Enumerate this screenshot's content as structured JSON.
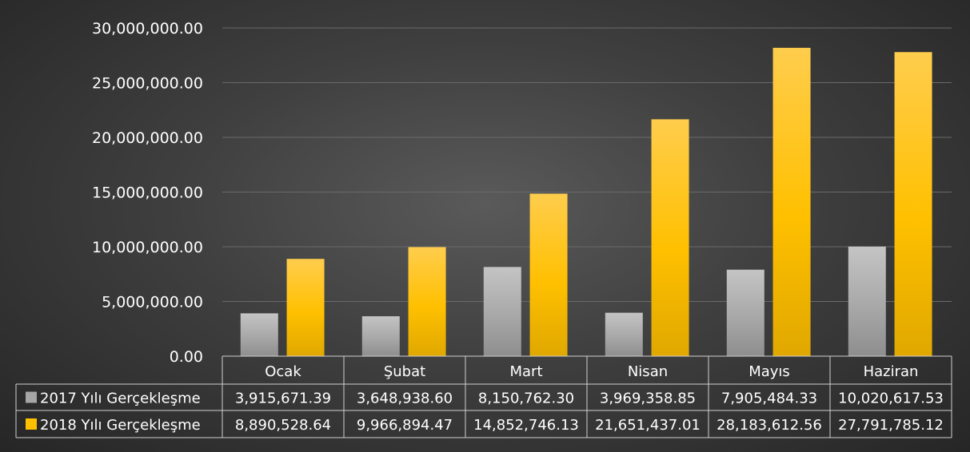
{
  "chart_data": {
    "type": "bar",
    "categories": [
      "Ocak",
      "Şubat",
      "Mart",
      "Nisan",
      "Mayıs",
      "Haziran"
    ],
    "series": [
      {
        "name": "2017 Yılı Gerçekleşme",
        "values": [
          3915671.39,
          3648938.6,
          8150762.3,
          3969358.85,
          7905484.33,
          10020617.53
        ],
        "labels": [
          "3,915,671.39",
          "3,648,938.60",
          "8,150,762.30",
          "3,969,358.85",
          "7,905,484.33",
          "10,020,617.53"
        ],
        "color": "#a6a6a6"
      },
      {
        "name": "2018 Yılı Gerçekleşme",
        "values": [
          8890528.64,
          9966894.47,
          14852746.13,
          21651437.01,
          28183612.56,
          27791785.12
        ],
        "labels": [
          "8,890,528.64",
          "9,966,894.47",
          "14,852,746.13",
          "21,651,437.01",
          "28,183,612.56",
          "27,791,785.12"
        ],
        "color": "#ffc000"
      }
    ],
    "yticks": [
      "0.00",
      "5,000,000.00",
      "10,000,000.00",
      "15,000,000.00",
      "20,000,000.00",
      "25,000,000.00",
      "30,000,000.00"
    ],
    "ylim": [
      0,
      30000000
    ],
    "grid": true,
    "legend": "data-table",
    "title": "",
    "xlabel": "",
    "ylabel": ""
  }
}
